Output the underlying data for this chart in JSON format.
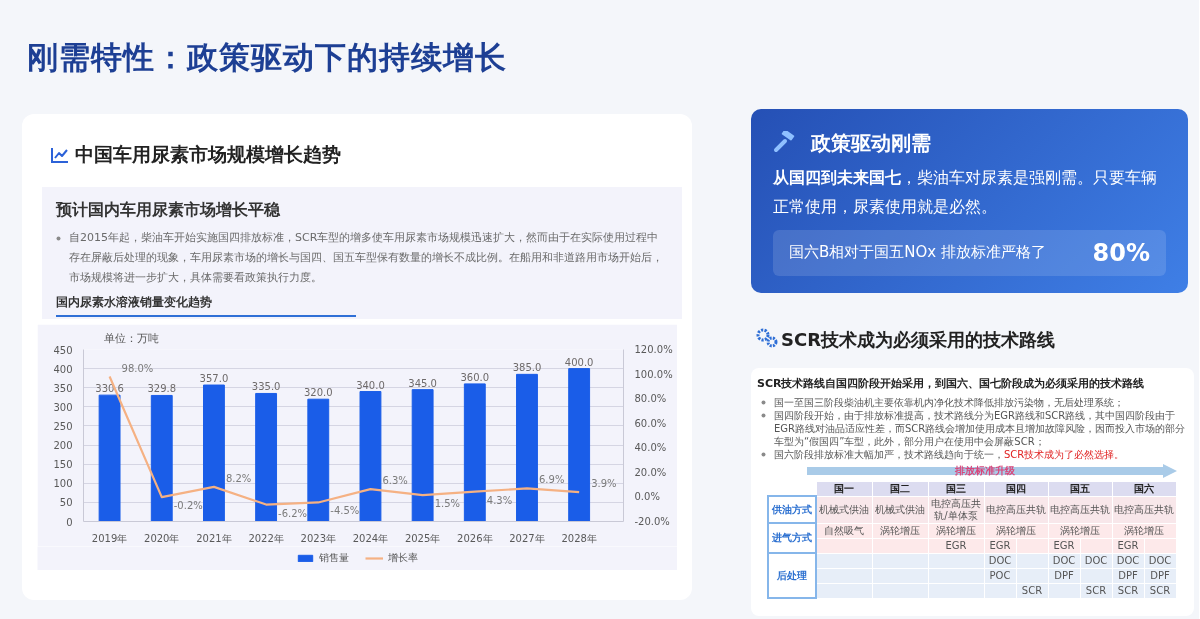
{
  "chart_data": [
    {
      "type": "bar",
      "title": "国内尿素水溶液销量变化趋势",
      "ylabel": "单位：万吨",
      "annotations": [
        "刚需特性：政策驱动下的持续增长",
        "中国车用尿素市场规模增长趋势",
        "预计国内车用尿素市场增长平稳",
        "自2015年起，柴油车开始实施国四排放标准，SCR车型的增多使车用尿素市场规模迅速扩大，然而由于在实际使用过程中存在屏蔽后处理的现象，车用尿素市场的增长与国四、国五车型保有数量的增长不成比例。在船用和非道路用市场开始后，市场规模将进一步扩大，具体需要看政策执行力度。"
      ],
      "categories": [
        "2019年",
        "2020年",
        "2021年",
        "2022年",
        "2023年",
        "2024年",
        "2025年",
        "2026年",
        "2027年",
        "2028年"
      ],
      "series": [
        {
          "name": "销售量",
          "type": "bar",
          "color": "#1a5de8",
          "values": [
            330.6,
            329.8,
            357.0,
            335.0,
            320.0,
            340.0,
            345.0,
            360.0,
            385.0,
            400.0
          ],
          "value_labels": [
            "330.6",
            "329.8",
            "357.0",
            "335.0",
            "320.0",
            "340.0",
            "345.0",
            "360.0",
            "385.0",
            "400.0"
          ]
        },
        {
          "name": "增长率",
          "type": "line",
          "axis": "y2",
          "color": "#f5b183",
          "values": [
            98.0,
            -0.2,
            8.2,
            -6.2,
            -4.5,
            6.3,
            1.5,
            4.3,
            6.9,
            3.9
          ],
          "value_labels": [
            "98.0%",
            "-0.2%",
            "8.2%",
            "-6.2%",
            "-4.5%",
            "6.3%",
            "1.5%",
            "4.3%",
            "6.9%",
            "3.9%"
          ]
        }
      ],
      "ylim": [
        0,
        450
      ],
      "yticks": [
        0,
        50,
        100,
        150,
        200,
        250,
        300,
        350,
        400,
        450
      ],
      "y2lim": [
        -20,
        120
      ],
      "y2ticks": [
        {
          "value": -20,
          "label": "-20.0%"
        },
        {
          "value": 0,
          "label": "0.0%"
        },
        {
          "value": 20,
          "label": "20.0%"
        },
        {
          "value": 40,
          "label": "40.0%"
        },
        {
          "value": 60,
          "label": "60.0%"
        },
        {
          "value": 80,
          "label": "80.0%"
        },
        {
          "value": 100,
          "label": "100.0%"
        },
        {
          "value": 120,
          "label": "120.0%"
        }
      ],
      "grid": "y",
      "legend": "bottom",
      "marker": "none"
    },
    {
      "type": "other",
      "title": "政策驱动刚需",
      "annotations": [
        "从国四到未来国七",
        "，柴油车对尿素是强刚需。只要车辆正常使用，尿素使用就是必然。",
        "国六B相对于国五NOx 排放标准严格了",
        "80%"
      ]
    },
    {
      "type": "other",
      "title": "SCR技术成为必须采用的技术路线",
      "subtitle": "SCR技术路线自国四阶段开始采用，到国六、国七阶段成为必须采用的技术路线",
      "annotations": [
        "国一至国三阶段柴油机主要依靠机内净化技术降低排放污染物，无后处理系统；",
        "国四阶段开始，由于排放标准提高，技术路线分为EGR路线和SCR路线，其中国四阶段由于EGR路线对油品适应性差，而SCR路线会增加使用成本且增加故障风险，因而投入市场的部分车型为“假国四”车型，此外，部分用户在使用中会屏蔽SCR；",
        "国六阶段排放标准大幅加严，技术路线趋向于统一，",
        "SCR技术成为了必然选择。",
        "排放标准升级"
      ],
      "categories": [
        "国一",
        "国二",
        "国三",
        "国四",
        null,
        "国五",
        null,
        "国六",
        null
      ],
      "y_categories": [
        "供油方式",
        "进气方式",
        null,
        "后处理",
        null,
        null
      ],
      "cell_labels": [
        [
          "机械式供油",
          "机械式供油",
          "电控高压共轨/单体泵",
          "电控高压共轨",
          null,
          "电控高压共轨",
          null,
          "电控高压共轨",
          null
        ],
        [
          "自然吸气",
          "涡轮增压",
          "涡轮增压",
          "涡轮增压",
          null,
          "涡轮增压",
          null,
          "涡轮增压",
          null
        ],
        [
          null,
          null,
          "EGR",
          "EGR",
          null,
          "EGR",
          null,
          "EGR",
          null
        ],
        [
          null,
          null,
          null,
          "DOC",
          null,
          "DOC",
          "DOC",
          "DOC",
          "DOC"
        ],
        [
          null,
          null,
          null,
          "POC",
          null,
          "DPF",
          null,
          "DPF",
          "DPF"
        ],
        [
          null,
          null,
          null,
          null,
          "SCR",
          null,
          "SCR",
          "SCR",
          "SCR"
        ]
      ]
    }
  ]
}
